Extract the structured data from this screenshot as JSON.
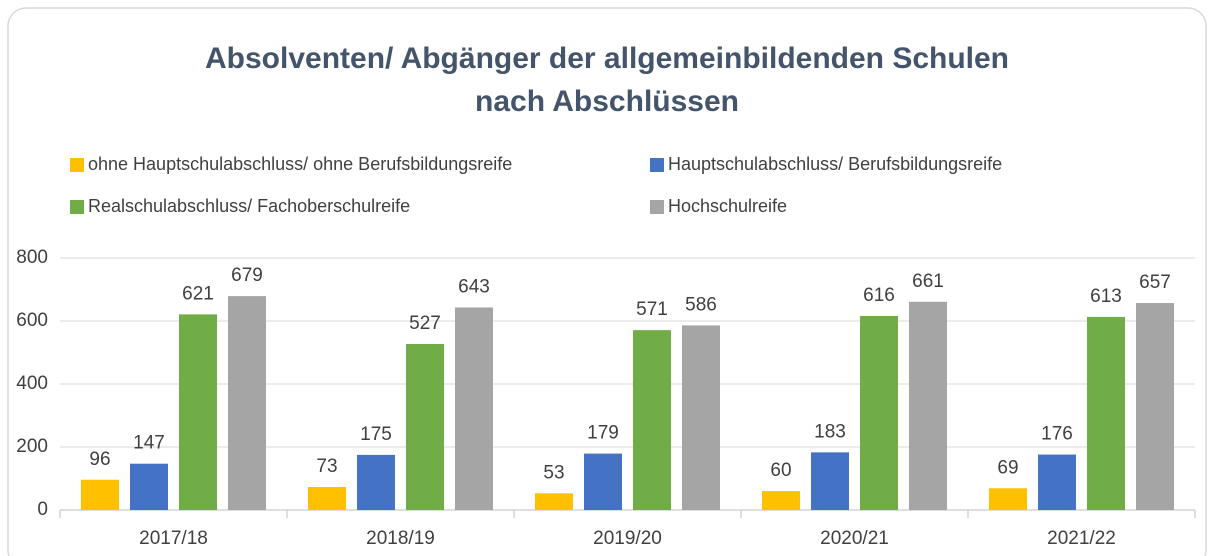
{
  "chart_data": {
    "type": "bar",
    "title": [
      "Absolventen/ Abgänger der allgemeinbildenden Schulen",
      "nach Abschlüssen"
    ],
    "categories": [
      "2017/18",
      "2018/19",
      "2019/20",
      "2020/21",
      "2021/22"
    ],
    "series": [
      {
        "name": "ohne Hauptschulabschluss/ ohne Berufsbildungsreife",
        "color": "#ffc000",
        "values": [
          96,
          73,
          53,
          60,
          69
        ]
      },
      {
        "name": "Hauptschulabschluss/ Berufsbildungsreife",
        "color": "#4472c4",
        "values": [
          147,
          175,
          179,
          183,
          176
        ]
      },
      {
        "name": "Realschulabschluss/ Fachoberschulreife",
        "color": "#70ad47",
        "values": [
          621,
          527,
          571,
          616,
          613
        ]
      },
      {
        "name": "Hochschulreife",
        "color": "#a5a5a5",
        "values": [
          679,
          643,
          586,
          661,
          657
        ]
      }
    ],
    "ylim": [
      0,
      800
    ],
    "yticks": [
      0,
      200,
      400,
      600,
      800
    ],
    "grid": true,
    "legend": "top"
  }
}
